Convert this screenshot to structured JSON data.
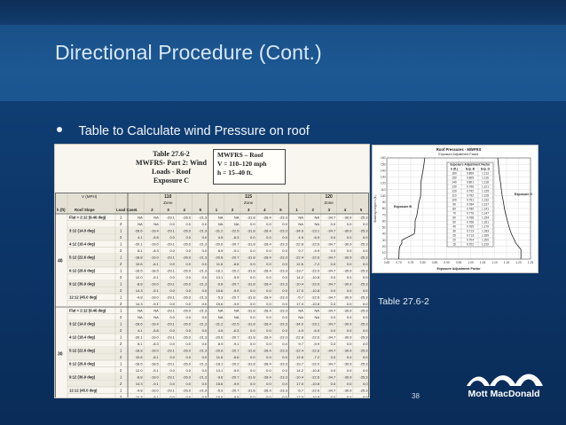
{
  "slide": {
    "title": "Directional Procedure (Cont.)",
    "bullet": "Table to Calculate wind Pressure on roof",
    "caption": "Table 27.6-2",
    "page_number": "38",
    "logo_text": "Mott MacDonald",
    "colors": {
      "title": "#d7e8fb",
      "content_bg": "#0c3567",
      "title_bg": "#1d5893",
      "table_bg": "#f8f6ef"
    }
  },
  "table_image": {
    "heading": [
      "Table 27.6-2",
      "MWFRS- Part 2:  Wind Loads - Roof",
      "Exposure C"
    ],
    "box": [
      "MWFRS – Roof",
      "V = 110–120 mph",
      "h = 15–40 ft."
    ],
    "header_row1": [
      "V (MPH)",
      "110",
      "115",
      "120"
    ],
    "header_row2": [
      "Zone",
      "Zone",
      "Zone"
    ],
    "header_row3": [
      "h (ft)",
      "Roof Slope",
      "Load Case",
      "1",
      "2",
      "3",
      "4",
      "5",
      "1",
      "2",
      "3",
      "4",
      "5",
      "1",
      "2",
      "3",
      "4",
      "5"
    ],
    "heights": [
      "40",
      "30"
    ],
    "slopes": [
      "Flat < 2:12 (9.46 deg)",
      "3:12  (14.0 deg)",
      "4:12  (18.4 deg)",
      "5:12  (22.6 deg)",
      "6:12  (26.6 deg)",
      "9:12  (36.9 deg)",
      "12:12 (45.0 deg)"
    ],
    "row_values": [
      [
        "NA",
        "NA",
        "-29.1",
        "-26.0",
        "-21.3",
        "NA",
        "NA",
        "-31.8",
        "-28.4",
        "-23.3",
        "NA",
        "NA",
        "-34.7",
        "-30.9",
        "-25.3"
      ],
      [
        "NA",
        "NA",
        "0.0",
        "0.0",
        "0.0",
        "NA",
        "NA",
        "0.0",
        "0.0",
        "0.0",
        "NA",
        "NA",
        "0.0",
        "0.0",
        "0.0"
      ],
      [
        "-28.6",
        "-19.4",
        "-29.1",
        "-26.0",
        "-21.3",
        "-31.2",
        "-22.5",
        "-31.8",
        "-28.4",
        "-23.3",
        "-34.0",
        "-23.1",
        "-34.7",
        "-30.9",
        "-25.3"
      ],
      [
        "4.1",
        "-5.8",
        "0.0",
        "0.0",
        "0.0",
        "4.5",
        "-6.3",
        "0.0",
        "0.0",
        "0.0",
        "4.9",
        "-6.9",
        "0.0",
        "0.0",
        "0.0"
      ],
      [
        "-20.1",
        "-19.0",
        "-29.1",
        "-26.0",
        "-21.3",
        "-20.6",
        "-20.7",
        "-31.8",
        "-28.4",
        "-23.3",
        "-22.8",
        "-22.6",
        "-34.7",
        "-30.9",
        "-25.3"
      ],
      [
        "8.1",
        "-8.3",
        "0.0",
        "0.0",
        "0.0",
        "8.9",
        "-9.1",
        "0.0",
        "0.0",
        "0.0",
        "9.7",
        "-9.9",
        "0.0",
        "0.0",
        "0.0"
      ],
      [
        "-18.8",
        "-19.0",
        "-29.1",
        "-26.0",
        "-21.3",
        "-20.6",
        "-20.7",
        "-31.8",
        "-28.4",
        "-23.3",
        "-22.4",
        "-22.6",
        "-34.7",
        "-30.9",
        "-25.3"
      ],
      [
        "10.6",
        "-6.1",
        "0.0",
        "0.0",
        "0.0",
        "11.6",
        "-6.6",
        "0.0",
        "0.0",
        "0.0",
        "12.6",
        "-7.2",
        "0.0",
        "0.0",
        "0.0"
      ],
      [
        "-16.5",
        "-18.5",
        "-29.1",
        "-26.0",
        "-21.3",
        "-18.1",
        "-20.2",
        "-31.8",
        "-28.4",
        "-23.3",
        "-19.7",
        "-22.0",
        "-34.7",
        "-30.9",
        "-25.3"
      ],
      [
        "12.0",
        "-9.1",
        "0.0",
        "0.0",
        "0.0",
        "13.1",
        "-9.9",
        "0.0",
        "0.0",
        "0.0",
        "14.2",
        "-10.8",
        "0.0",
        "0.0",
        "0.0"
      ],
      [
        "-8.8",
        "-19.0",
        "-29.1",
        "-26.0",
        "-21.3",
        "-9.6",
        "-20.7",
        "-31.8",
        "-28.4",
        "-23.3",
        "-10.4",
        "-22.6",
        "-34.7",
        "-30.9",
        "-25.3"
      ],
      [
        "14.3",
        "-9.1",
        "0.0",
        "0.0",
        "0.0",
        "15.6",
        "-9.9",
        "0.0",
        "0.0",
        "0.0",
        "17.0",
        "-10.8",
        "0.0",
        "0.0",
        "0.0"
      ],
      [
        "-4.8",
        "-19.0",
        "-29.1",
        "-26.0",
        "-21.3",
        "-5.3",
        "-20.7",
        "-31.8",
        "-28.4",
        "-23.3",
        "-5.7",
        "-22.6",
        "-34.7",
        "-30.9",
        "-25.3"
      ],
      [
        "14.3",
        "-9.1",
        "0.0",
        "0.0",
        "0.0",
        "15.6",
        "-9.9",
        "0.0",
        "0.0",
        "0.0",
        "17.0",
        "-10.8",
        "0.0",
        "0.0",
        "0.0"
      ]
    ]
  },
  "chart_image": {
    "title": "Roof Pressures - MWFRS",
    "subtitle": "Exposure Adjustment Factor",
    "left_label": "Exposure B",
    "right_label": "Exposure D",
    "y_label": "Building height h (ft.)",
    "x_label": "Exposure Adjustment Factor",
    "inset_head": [
      "Exposure Adjustment Factor"
    ],
    "inset_cols": [
      "h (ft.)",
      "Exp. B",
      "Exp. D"
    ],
    "inset_rows": [
      [
        "160",
        "0.809",
        "1.113"
      ],
      [
        "150",
        "0.805",
        "1.116"
      ],
      [
        "140",
        "0.801",
        "1.118"
      ],
      [
        "130",
        "0.796",
        "1.121"
      ],
      [
        "120",
        "0.792",
        "1.125"
      ],
      [
        "110",
        "0.792",
        "1.128"
      ],
      [
        "100",
        "0.791",
        "1.132"
      ],
      [
        "90",
        "0.784",
        "1.137"
      ],
      [
        "80",
        "0.780",
        "1.141"
      ],
      [
        "70",
        "0.776",
        "1.147"
      ],
      [
        "60",
        "0.768",
        "1.154"
      ],
      [
        "50",
        "0.768",
        "1.161"
      ],
      [
        "40",
        "0.765",
        "1.170"
      ],
      [
        "30",
        "0.713",
        "1.183"
      ],
      [
        "25",
        "0.713",
        "1.189"
      ],
      [
        "20",
        "0.704",
        "1.200"
      ],
      [
        "15",
        "0.702",
        "1.210"
      ]
    ],
    "y_ticks": [
      "160",
      "150",
      "140",
      "130",
      "120",
      "110",
      "100",
      "90",
      "80",
      "70",
      "60",
      "50",
      "40",
      "30",
      "20",
      "10",
      "0"
    ],
    "x_ticks": [
      "0.65",
      "0.70",
      "0.75",
      "0.80",
      "0.85",
      "0.90",
      "0.95",
      "1.00",
      "1.05",
      "1.10",
      "1.15",
      "1.20",
      "1.25"
    ]
  }
}
